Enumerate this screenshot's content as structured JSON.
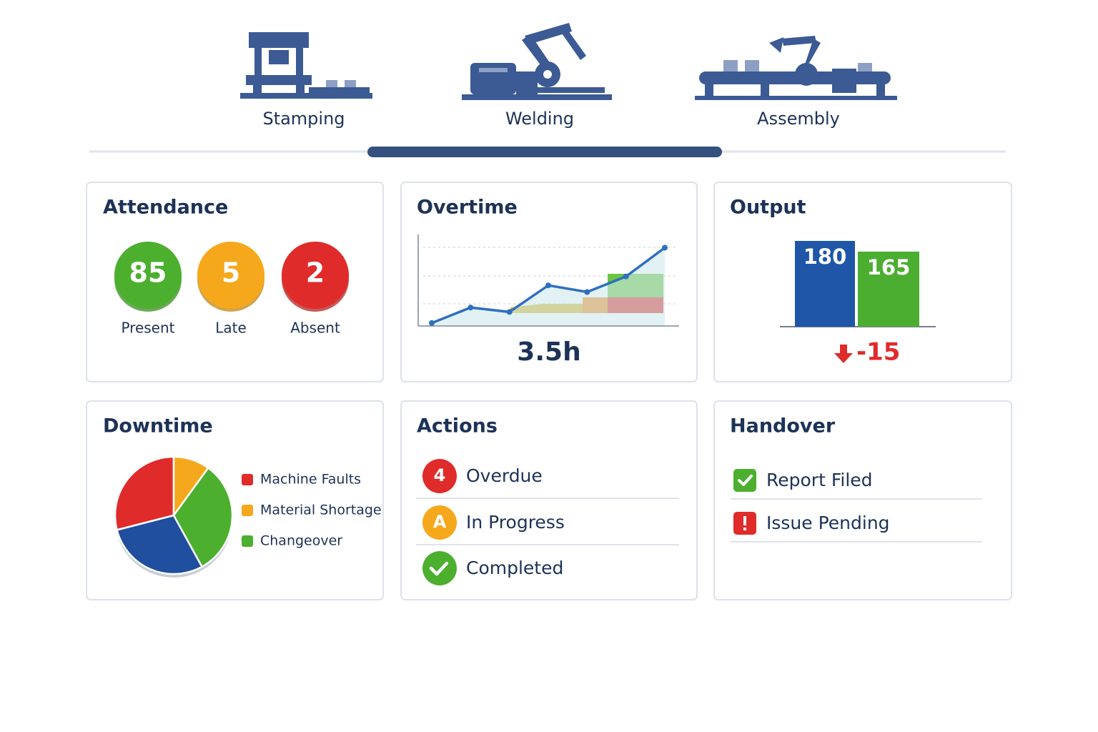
{
  "tabs": {
    "items": [
      "Stamping",
      "Welding",
      "Assembly"
    ],
    "active": 1
  },
  "attendance": {
    "title": "Attendance",
    "items": [
      {
        "value": 85,
        "label": "Present",
        "color": "#4caf2e"
      },
      {
        "value": 5,
        "label": "Late",
        "color": "#f6a81c"
      },
      {
        "value": 2,
        "label": "Absent",
        "color": "#e02b2b"
      }
    ]
  },
  "overtime": {
    "title": "Overtime",
    "total": {
      "value": 3.5,
      "label": "3.5h"
    },
    "chart": {
      "type": "line",
      "values": [
        0.1,
        0.8,
        0.6,
        1.8,
        1.5,
        2.2,
        3.5
      ],
      "ylim": [
        0,
        4
      ],
      "color": "#2f6fc0"
    }
  },
  "output": {
    "title": "Output",
    "delta": -15,
    "chart": {
      "type": "bar",
      "values": [
        180,
        165
      ],
      "colors": [
        "#1f56a8",
        "#4cae31"
      ],
      "ylim": [
        60,
        200
      ]
    }
  },
  "downtime": {
    "title": "Downtime",
    "chart": {
      "type": "pie",
      "categories": [
        "Machine Faults",
        "Material Shortage",
        "Changeover",
        null
      ],
      "values": [
        29,
        10,
        32,
        29
      ],
      "colors": [
        "#e02b2b",
        "#f6a81c",
        "#4caf2e",
        "#1f4f9e"
      ]
    }
  },
  "actions": {
    "title": "Actions",
    "items": [
      {
        "badge": 4,
        "label": "Overdue",
        "color": "#e02b2b"
      },
      {
        "badge": "A",
        "label": "In Progress",
        "color": "#f6a81c"
      },
      {
        "label": "Completed",
        "color": "#4caf2e"
      }
    ]
  },
  "handover": {
    "title": "Handover",
    "items": [
      {
        "label": "Report Filed",
        "color": "#4caf2e"
      },
      {
        "label": "Issue Pending",
        "color": "#e02b2b"
      }
    ]
  }
}
